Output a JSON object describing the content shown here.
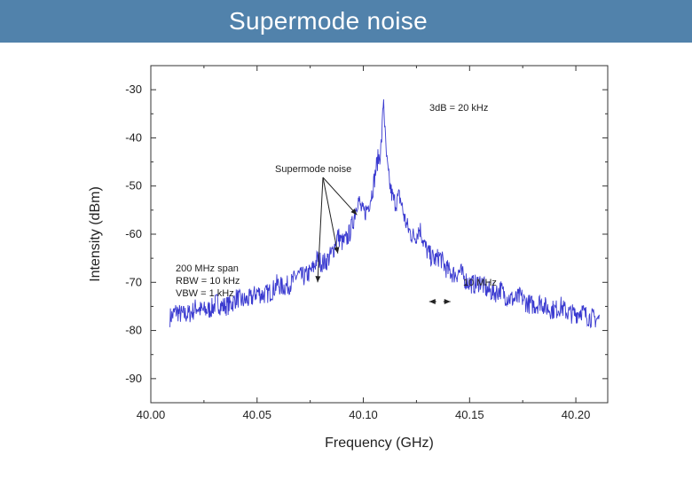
{
  "slide": {
    "title": "Supermode noise",
    "title_bar_color": "#5182ab"
  },
  "chart_data": {
    "type": "line",
    "xlabel": "Frequency (GHz)",
    "ylabel": "Intensity (dBm)",
    "xlim": [
      40.0,
      40.215
    ],
    "ylim": [
      -95,
      -25
    ],
    "x_ticks": [
      40.0,
      40.05,
      40.1,
      40.15,
      40.2
    ],
    "x_tick_labels": [
      "40.00",
      "40.05",
      "40.10",
      "40.15",
      "40.20"
    ],
    "y_ticks": [
      -30,
      -40,
      -50,
      -60,
      -70,
      -80,
      -90
    ],
    "y_tick_labels": [
      "-30",
      "-40",
      "-50",
      "-60",
      "-70",
      "-80",
      "-90"
    ],
    "grid": false,
    "series_color": "#3a3ad0",
    "trace_range": [
      40.009,
      40.211
    ],
    "noise_floor": -85.5,
    "central_peak": {
      "x": 40.1095,
      "y": -32
    },
    "peaks": [
      {
        "x": 40.012,
        "y": -82
      },
      {
        "x": 40.0215,
        "y": -81
      },
      {
        "x": 40.031,
        "y": -80
      },
      {
        "x": 40.0405,
        "y": -79
      },
      {
        "x": 40.05,
        "y": -78
      },
      {
        "x": 40.0595,
        "y": -76
      },
      {
        "x": 40.069,
        "y": -74
      },
      {
        "x": 40.0785,
        "y": -69
      },
      {
        "x": 40.088,
        "y": -63
      },
      {
        "x": 40.0975,
        "y": -54
      },
      {
        "x": 40.107,
        "y": -46
      },
      {
        "x": 40.1095,
        "y": -32
      },
      {
        "x": 40.117,
        "y": -54
      },
      {
        "x": 40.1265,
        "y": -61
      },
      {
        "x": 40.136,
        "y": -69
      },
      {
        "x": 40.1455,
        "y": -73
      },
      {
        "x": 40.155,
        "y": -75
      },
      {
        "x": 40.1645,
        "y": -77
      },
      {
        "x": 40.174,
        "y": -79
      },
      {
        "x": 40.1835,
        "y": -80
      },
      {
        "x": 40.193,
        "y": -81
      },
      {
        "x": 40.2025,
        "y": -82
      }
    ],
    "annotations": {
      "bandwidth": "3dB = 20 kHz",
      "supermode": "Supermode noise",
      "span": "200 MHz span",
      "rbw": "RBW = 10  kHz",
      "vbw": "VBW = 1 kHz",
      "spacing": "10 MHz"
    },
    "arrow_targets": [
      {
        "x": 40.0785,
        "y": -70
      },
      {
        "x": 40.088,
        "y": -64
      },
      {
        "x": 40.097,
        "y": -56
      }
    ],
    "spacing_arrow": {
      "x_from": 40.131,
      "x_to": 40.141,
      "y": -74
    }
  }
}
